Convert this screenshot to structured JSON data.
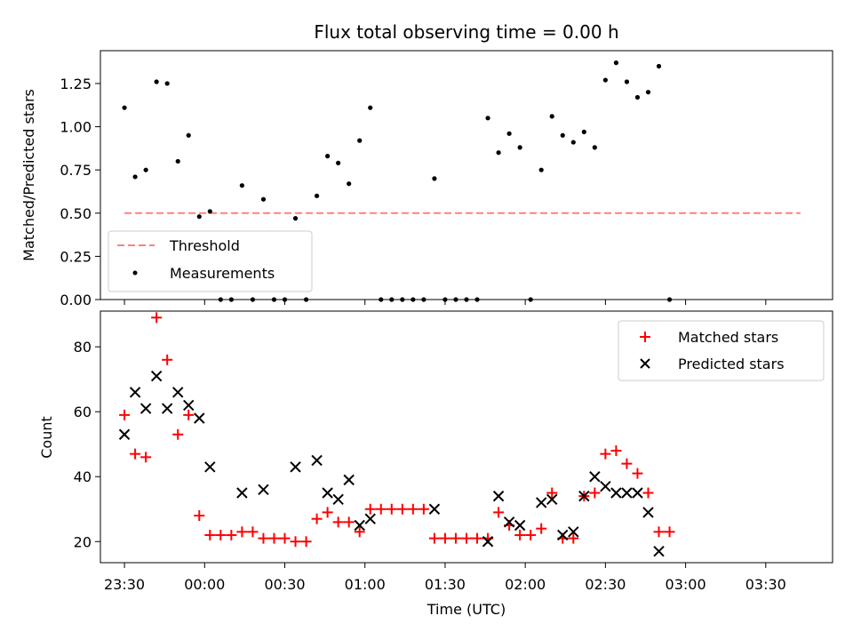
{
  "chart_data": [
    {
      "type": "scatter",
      "title": "Flux total observing time = 0.00 h",
      "xlabel": "",
      "ylabel": "Matched/Predicted stars",
      "xlim": [
        "23:21",
        "03:55"
      ],
      "ylim": [
        0,
        1.44
      ],
      "yticks": [
        0.0,
        0.25,
        0.5,
        0.75,
        1.0,
        1.25
      ],
      "ytick_labels": [
        "0.00",
        "0.25",
        "0.50",
        "0.75",
        "1.00",
        "1.25"
      ],
      "legend_position": "lower-left",
      "threshold": {
        "name": "Threshold",
        "value": 0.5,
        "x_start": "23:30",
        "x_end": "03:43",
        "color": "#ff8080",
        "style": "dashed"
      },
      "series": [
        {
          "name": "Measurements",
          "color": "#000000",
          "marker": "dot",
          "points": [
            [
              "23:30",
              1.11
            ],
            [
              "23:34",
              0.71
            ],
            [
              "23:38",
              0.75
            ],
            [
              "23:42",
              1.26
            ],
            [
              "23:46",
              1.25
            ],
            [
              "23:50",
              0.8
            ],
            [
              "23:54",
              0.95
            ],
            [
              "23:58",
              0.48
            ],
            [
              "00:02",
              0.51
            ],
            [
              "00:06",
              0.0
            ],
            [
              "00:10",
              0.0
            ],
            [
              "00:14",
              0.66
            ],
            [
              "00:18",
              0.0
            ],
            [
              "00:22",
              0.58
            ],
            [
              "00:26",
              0.0
            ],
            [
              "00:30",
              0.0
            ],
            [
              "00:34",
              0.47
            ],
            [
              "00:38",
              0.0
            ],
            [
              "00:42",
              0.6
            ],
            [
              "00:46",
              0.83
            ],
            [
              "00:50",
              0.79
            ],
            [
              "00:54",
              0.67
            ],
            [
              "00:58",
              0.92
            ],
            [
              "01:02",
              1.11
            ],
            [
              "01:06",
              0.0
            ],
            [
              "01:10",
              0.0
            ],
            [
              "01:14",
              0.0
            ],
            [
              "01:18",
              0.0
            ],
            [
              "01:22",
              0.0
            ],
            [
              "01:26",
              0.7
            ],
            [
              "01:30",
              0.0
            ],
            [
              "01:34",
              0.0
            ],
            [
              "01:38",
              0.0
            ],
            [
              "01:42",
              0.0
            ],
            [
              "01:46",
              1.05
            ],
            [
              "01:50",
              0.85
            ],
            [
              "01:54",
              0.96
            ],
            [
              "01:58",
              0.88
            ],
            [
              "02:02",
              0.0
            ],
            [
              "02:06",
              0.75
            ],
            [
              "02:10",
              1.06
            ],
            [
              "02:14",
              0.95
            ],
            [
              "02:18",
              0.91
            ],
            [
              "02:22",
              0.97
            ],
            [
              "02:26",
              0.88
            ],
            [
              "02:30",
              1.27
            ],
            [
              "02:34",
              1.37
            ],
            [
              "02:38",
              1.26
            ],
            [
              "02:42",
              1.17
            ],
            [
              "02:46",
              1.2
            ],
            [
              "02:50",
              1.35
            ],
            [
              "02:54",
              0.0
            ]
          ]
        }
      ]
    },
    {
      "type": "scatter",
      "title": "",
      "xlabel": "Time (UTC)",
      "ylabel": "Count",
      "xlim": [
        "23:21",
        "03:55"
      ],
      "ylim": [
        13.5,
        91
      ],
      "yticks": [
        20,
        40,
        60,
        80
      ],
      "ytick_labels": [
        "20",
        "40",
        "60",
        "80"
      ],
      "xtick_labels": [
        "23:30",
        "00:00",
        "00:30",
        "01:00",
        "01:30",
        "02:00",
        "02:30",
        "03:00",
        "03:30"
      ],
      "legend_position": "top-right",
      "series": [
        {
          "name": "Matched stars",
          "color": "#ff0000",
          "marker": "plus",
          "points": [
            [
              "23:30",
              59
            ],
            [
              "23:34",
              47
            ],
            [
              "23:38",
              46
            ],
            [
              "23:42",
              89
            ],
            [
              "23:46",
              76
            ],
            [
              "23:50",
              53
            ],
            [
              "23:54",
              59
            ],
            [
              "23:58",
              28
            ],
            [
              "00:02",
              22
            ],
            [
              "00:06",
              22
            ],
            [
              "00:10",
              22
            ],
            [
              "00:14",
              23
            ],
            [
              "00:18",
              23
            ],
            [
              "00:22",
              21
            ],
            [
              "00:26",
              21
            ],
            [
              "00:30",
              21
            ],
            [
              "00:34",
              20
            ],
            [
              "00:38",
              20
            ],
            [
              "00:42",
              27
            ],
            [
              "00:46",
              29
            ],
            [
              "00:50",
              26
            ],
            [
              "00:54",
              26
            ],
            [
              "00:58",
              23
            ],
            [
              "01:02",
              30
            ],
            [
              "01:06",
              30
            ],
            [
              "01:10",
              30
            ],
            [
              "01:14",
              30
            ],
            [
              "01:18",
              30
            ],
            [
              "01:22",
              30
            ],
            [
              "01:26",
              21
            ],
            [
              "01:30",
              21
            ],
            [
              "01:34",
              21
            ],
            [
              "01:38",
              21
            ],
            [
              "01:42",
              21
            ],
            [
              "01:46",
              21
            ],
            [
              "01:50",
              29
            ],
            [
              "01:54",
              25
            ],
            [
              "01:58",
              22
            ],
            [
              "02:02",
              22
            ],
            [
              "02:06",
              24
            ],
            [
              "02:10",
              35
            ],
            [
              "02:14",
              21
            ],
            [
              "02:18",
              21
            ],
            [
              "02:22",
              34
            ],
            [
              "02:26",
              35
            ],
            [
              "02:30",
              47
            ],
            [
              "02:34",
              48
            ],
            [
              "02:38",
              44
            ],
            [
              "02:42",
              41
            ],
            [
              "02:46",
              35
            ],
            [
              "02:50",
              23
            ],
            [
              "02:54",
              23
            ]
          ]
        },
        {
          "name": "Predicted stars",
          "color": "#000000",
          "marker": "x",
          "points": [
            [
              "23:30",
              53
            ],
            [
              "23:34",
              66
            ],
            [
              "23:38",
              61
            ],
            [
              "23:42",
              71
            ],
            [
              "23:46",
              61
            ],
            [
              "23:50",
              66
            ],
            [
              "23:54",
              62
            ],
            [
              "23:58",
              58
            ],
            [
              "00:02",
              43
            ],
            [
              "00:14",
              35
            ],
            [
              "00:22",
              36
            ],
            [
              "00:34",
              43
            ],
            [
              "00:42",
              45
            ],
            [
              "00:46",
              35
            ],
            [
              "00:50",
              33
            ],
            [
              "00:54",
              39
            ],
            [
              "00:58",
              25
            ],
            [
              "01:02",
              27
            ],
            [
              "01:26",
              30
            ],
            [
              "01:46",
              20
            ],
            [
              "01:50",
              34
            ],
            [
              "01:54",
              26
            ],
            [
              "01:58",
              25
            ],
            [
              "02:06",
              32
            ],
            [
              "02:10",
              33
            ],
            [
              "02:14",
              22
            ],
            [
              "02:18",
              23
            ],
            [
              "02:22",
              34
            ],
            [
              "02:26",
              40
            ],
            [
              "02:30",
              37
            ],
            [
              "02:34",
              35
            ],
            [
              "02:38",
              35
            ],
            [
              "02:42",
              35
            ],
            [
              "02:46",
              29
            ],
            [
              "02:50",
              17
            ]
          ]
        }
      ]
    }
  ]
}
